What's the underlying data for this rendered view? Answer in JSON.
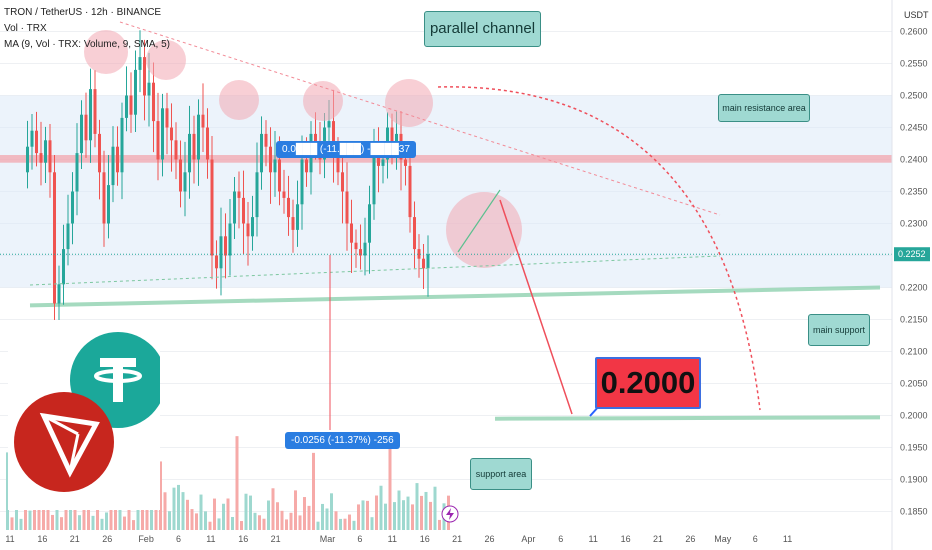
{
  "legend": {
    "symbol": "TRON / TetherUS · 12h · BINANCE",
    "vol": "Vol · TRX",
    "ma": "MA (9, Vol · TRX: Volume, 9, SMA, 5)"
  },
  "currency": "USDT",
  "last_price": "0.2252",
  "annotations": {
    "channel": "parallel channel",
    "resistance": "main resistance area",
    "support_main": "main support",
    "support_area": "support area",
    "target": "0.2000",
    "measure_top": "0.0███ (-11.███) -████37",
    "measure_bottom": "-0.0256 (-11.37%) -256"
  },
  "colors": {
    "up": "#26a69a",
    "down": "#ef5350",
    "accent": "#2962ff",
    "label_bg": "#9fd9d2"
  },
  "chart_data": {
    "type": "candlestick",
    "ylim": [
      0.1825,
      0.2625
    ],
    "y_ticks": [
      "0.2600",
      "0.2550",
      "0.2500",
      "0.2450",
      "0.2400",
      "0.2350",
      "0.2300",
      "0.2250",
      "0.2200",
      "0.2150",
      "0.2100",
      "0.2050",
      "0.2000",
      "0.1950",
      "0.1900",
      "0.1850"
    ],
    "x_ticks": [
      "11",
      "16",
      "21",
      "26",
      "Feb",
      "6",
      "11",
      "16",
      "21",
      "Mar",
      "6",
      "11",
      "16",
      "21",
      "26",
      "Apr",
      "6",
      "11",
      "16",
      "21",
      "26",
      "May",
      "6",
      "11"
    ],
    "x_tick_positions_days": [
      0,
      5,
      10,
      15,
      21,
      26,
      31,
      36,
      41,
      49,
      54,
      59,
      64,
      69,
      74,
      80,
      85,
      90,
      95,
      100,
      105,
      110,
      115,
      120
    ],
    "candle_closes": [
      0.242,
      0.2445,
      0.241,
      0.2395,
      0.243,
      0.238,
      0.2175,
      0.2205,
      0.226,
      0.23,
      0.235,
      0.241,
      0.247,
      0.243,
      0.251,
      0.244,
      0.238,
      0.23,
      0.236,
      0.242,
      0.238,
      0.2465,
      0.25,
      0.247,
      0.254,
      0.256,
      0.25,
      0.252,
      0.246,
      0.24,
      0.248,
      0.245,
      0.243,
      0.24,
      0.235,
      0.238,
      0.244,
      0.24,
      0.247,
      0.245,
      0.24,
      0.225,
      0.223,
      0.228,
      0.225,
      0.23,
      0.235,
      0.234,
      0.23,
      0.228,
      0.231,
      0.238,
      0.244,
      0.242,
      0.238,
      0.24,
      0.235,
      0.234,
      0.231,
      0.229,
      0.233,
      0.24,
      0.238,
      0.244,
      0.242,
      0.24,
      0.245,
      0.246,
      0.241,
      0.238,
      0.235,
      0.23,
      0.227,
      0.226,
      0.225,
      0.227,
      0.233,
      0.241,
      0.239,
      0.24,
      0.245,
      0.242,
      0.244,
      0.24,
      0.239,
      0.231,
      0.226,
      0.2245,
      0.223,
      0.2252
    ],
    "levels": {
      "resistance": 0.24,
      "support_main": 0.22,
      "support_area": 0.2,
      "target": 0.2
    }
  }
}
